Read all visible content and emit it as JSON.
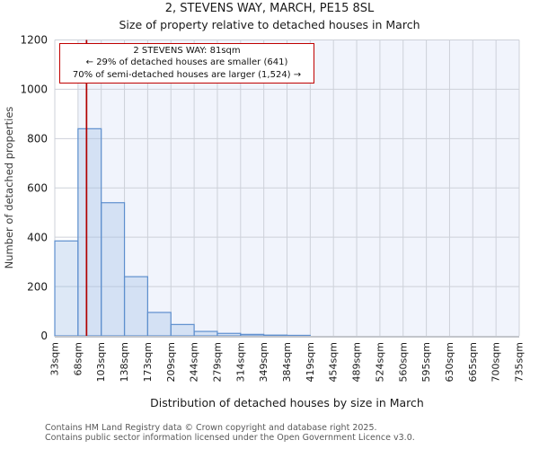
{
  "header": {
    "title": "2, STEVENS WAY, MARCH, PE15 8SL",
    "subtitle": "Size of property relative to detached houses in March"
  },
  "chart_data": {
    "type": "bar",
    "title": "2, STEVENS WAY, MARCH, PE15 8SL",
    "subtitle": "Size of property relative to detached houses in March",
    "xlabel": "Distribution of detached houses by size in March",
    "ylabel": "Number of detached properties",
    "ylim": [
      0,
      1200
    ],
    "y_ticks": [
      0,
      200,
      400,
      600,
      800,
      1000,
      1200
    ],
    "x_range_sqm": [
      33,
      735
    ],
    "bin_edges_sqm": [
      33,
      68,
      103,
      138,
      173,
      209,
      244,
      279,
      314,
      349,
      384,
      419,
      454,
      489,
      524,
      560,
      595,
      630,
      665,
      700,
      735
    ],
    "x_tick_labels": [
      "33sqm",
      "68sqm",
      "103sqm",
      "138sqm",
      "173sqm",
      "209sqm",
      "244sqm",
      "279sqm",
      "314sqm",
      "349sqm",
      "384sqm",
      "419sqm",
      "454sqm",
      "489sqm",
      "524sqm",
      "560sqm",
      "595sqm",
      "630sqm",
      "665sqm",
      "700sqm",
      "735sqm"
    ],
    "values": [
      385,
      840,
      540,
      240,
      95,
      46,
      18,
      10,
      6,
      3,
      2,
      0,
      0,
      0,
      0,
      0,
      0,
      0,
      0,
      0
    ],
    "grid": true,
    "legend": false,
    "property_marker": {
      "sqm": 81,
      "shaded_from_sqm": 68
    },
    "annotation": {
      "line1": "2 STEVENS WAY: 81sqm",
      "line2": "← 29% of detached houses are smaller (641)",
      "line3": "70% of semi-detached houses are larger (1,524) →"
    }
  },
  "colors": {
    "bar_border": "#5e8fce",
    "bar_fill_base": "#9fbde6",
    "bar_fill_opacity": 0.35,
    "shaded_region": "#f1f4fc",
    "gridline": "#cdd1d9",
    "axis_line": "#c2c5cb",
    "marker_line": "#b00000",
    "annotation_border": "#c00000",
    "text": "#1a1a1a",
    "muted_text": "#595959"
  },
  "footer": {
    "line1": "Contains HM Land Registry data © Crown copyright and database right 2025.",
    "line2": "Contains public sector information licensed under the Open Government Licence v3.0."
  }
}
